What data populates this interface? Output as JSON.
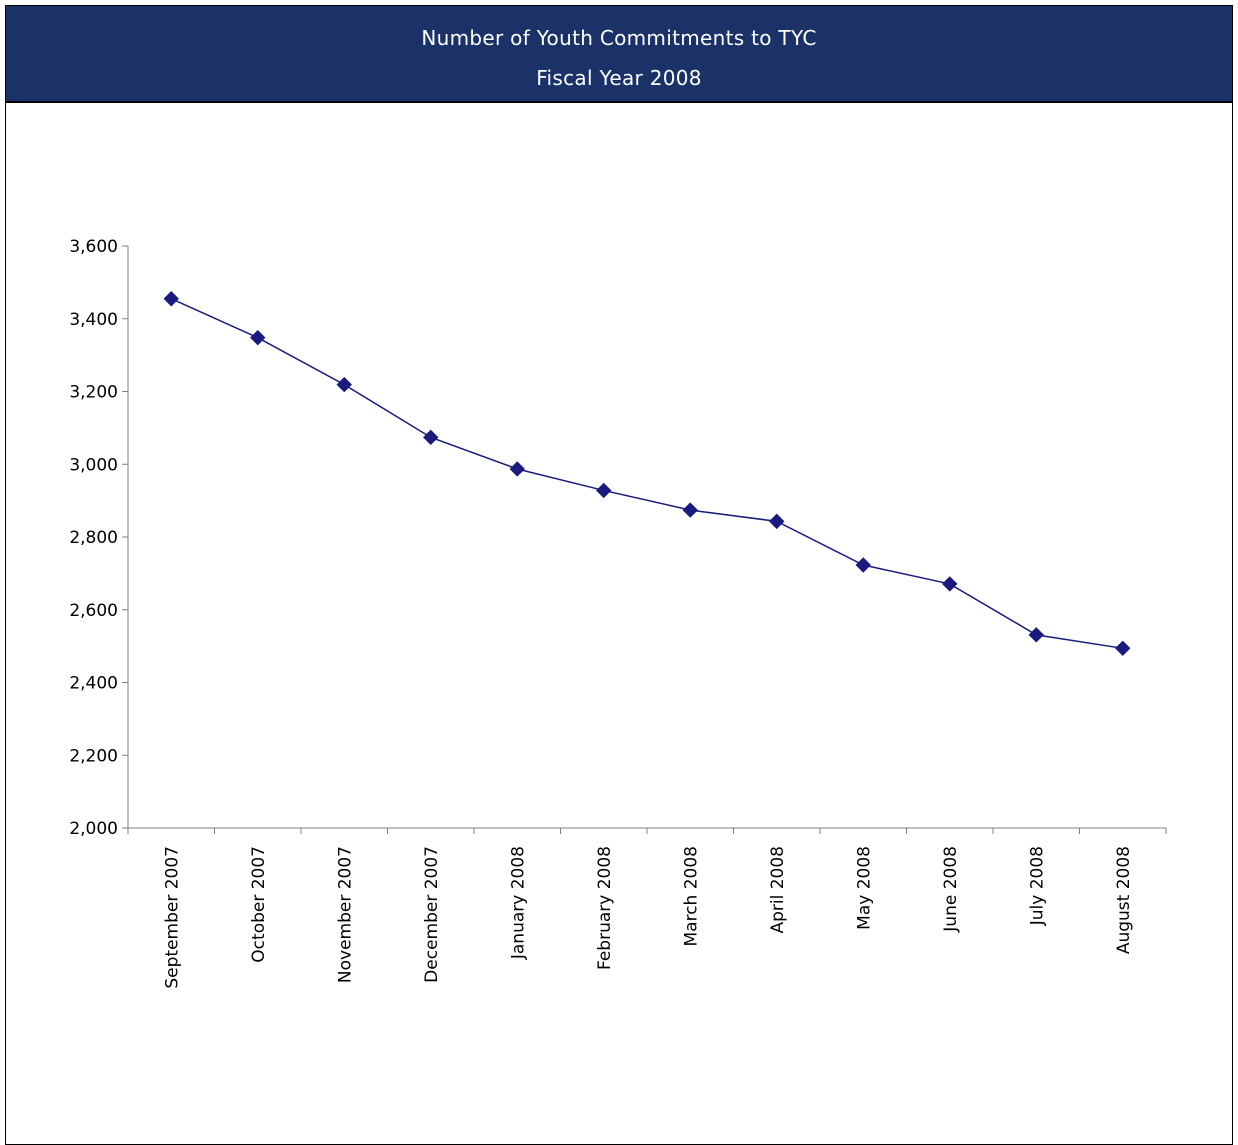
{
  "header": {
    "title": "Number of Youth Commitments to TYC",
    "subtitle": "Fiscal Year 2008",
    "background_color": "#1b3268",
    "text_color": "#ffffff"
  },
  "chart_data": {
    "type": "line",
    "title": "Number of Youth Commitments to TYC",
    "subtitle": "Fiscal Year 2008",
    "xlabel": "",
    "ylabel": "",
    "categories": [
      "September 2007",
      "October 2007",
      "November 2007",
      "December 2007",
      "January 2008",
      "February 2008",
      "March 2008",
      "April 2008",
      "May 2008",
      "June 2008",
      "July 2008",
      "August 2008"
    ],
    "series": [
      {
        "values": [
          3455,
          3348,
          3219,
          3074,
          2987,
          2928,
          2874,
          2843,
          2723,
          2671,
          2531,
          2494
        ],
        "color": "#1a1a80",
        "marker": "diamond"
      }
    ],
    "ylim": [
      2000,
      3600
    ],
    "yticks": [
      2000,
      2200,
      2400,
      2600,
      2800,
      3000,
      3200,
      3400,
      3600
    ],
    "ytick_labels": [
      "2,000",
      "2,200",
      "2,400",
      "2,600",
      "2,800",
      "3,000",
      "3,200",
      "3,400",
      "3,600"
    ],
    "grid": false,
    "legend": "none"
  }
}
